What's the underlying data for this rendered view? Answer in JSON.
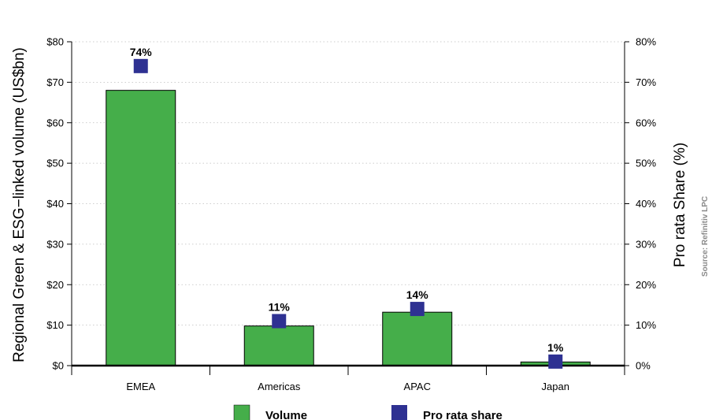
{
  "chart_data": {
    "type": "bar",
    "categories": [
      "EMEA",
      "Americas",
      "APAC",
      "Japan"
    ],
    "series": [
      {
        "name": "Volume",
        "type": "bar",
        "axis": "left",
        "values": [
          68,
          9.8,
          13.2,
          0.9
        ],
        "color": "#45ae4a"
      },
      {
        "name": "Pro rata share",
        "type": "scatter",
        "axis": "right",
        "values": [
          74,
          11,
          14,
          1
        ],
        "color": "#2e3192"
      }
    ],
    "data_labels": [
      "74%",
      "11%",
      "14%",
      "1%"
    ],
    "ylabel": "Regional Green & ESG−linked volume (US$bn)",
    "y2label": "Pro rata Share (%)",
    "ylim": [
      0,
      80
    ],
    "y2lim": [
      0,
      80
    ],
    "yticks": [
      "$0",
      "$10",
      "$20",
      "$30",
      "$40",
      "$50",
      "$60",
      "$70",
      "$80"
    ],
    "y2ticks": [
      "0%",
      "10%",
      "20%",
      "30%",
      "40%",
      "50%",
      "60%",
      "70%",
      "80%"
    ],
    "grid": true,
    "legend_position": "bottom",
    "source": "Source: Refinitiv LPC"
  }
}
